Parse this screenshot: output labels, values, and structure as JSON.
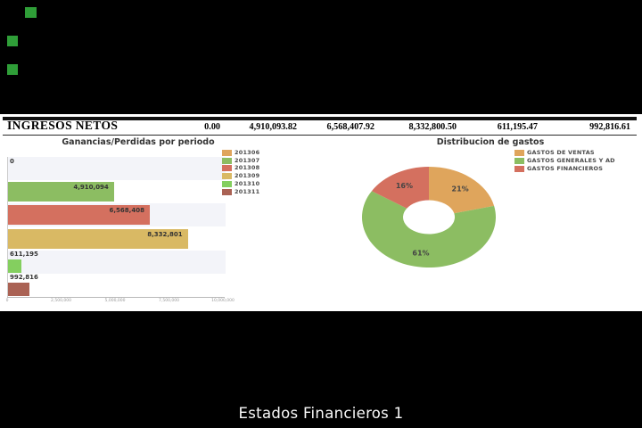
{
  "window": {
    "background": "#000000",
    "panel_background": "#ffffff"
  },
  "decor": {
    "green_square_color": "#2f9e38",
    "square_count": 3
  },
  "income_row": {
    "label": "INGRESOS NETOS",
    "values": [
      "0.00",
      "4,910,093.82",
      "6,568,407.92",
      "8,332,800.50",
      "611,195.47",
      "992,816.61"
    ]
  },
  "caption": "Estados Financieros 1",
  "chart_data": [
    {
      "type": "bar",
      "orientation": "horizontal",
      "title": "Ganancias/Perdidas por periodo",
      "categories": [
        "201306",
        "201307",
        "201308",
        "201309",
        "201310",
        "201311"
      ],
      "values": [
        0,
        4910094,
        6568408,
        8332801,
        611195,
        992816
      ],
      "bar_labels": [
        "0",
        "4,910,094",
        "6,568,408",
        "8,332,801",
        "611,195",
        "992,816"
      ],
      "colors": [
        "#dfa55c",
        "#8cbd62",
        "#d4705f",
        "#d9b964",
        "#84cf5f",
        "#aa6254"
      ],
      "xlim": [
        0,
        10000000
      ],
      "x_ticks": [
        {
          "value": 0,
          "label": "0"
        },
        {
          "value": 2500000,
          "label": "2,500,000"
        },
        {
          "value": 5000000,
          "label": "5,000,000"
        },
        {
          "value": 7500000,
          "label": "7,500,000"
        },
        {
          "value": 10000000,
          "label": "10,000,000"
        }
      ],
      "row_stripe_colors": [
        "#f3f4f9",
        "#ffffff"
      ],
      "legend_position": "right",
      "grid": false
    },
    {
      "type": "pie",
      "donut": true,
      "title": "Distribucion de gastos",
      "labels": [
        "GASTOS DE VENTAS",
        "GASTOS GENERALES Y AD",
        "GASTOS FINANCIEROS"
      ],
      "values": [
        21,
        61,
        16
      ],
      "slice_labels": [
        "21%",
        "61%",
        "16%"
      ],
      "colors": [
        "#dfa55c",
        "#8cbd62",
        "#d4705f"
      ],
      "start_angle_deg": 0,
      "direction": "clockwise",
      "legend_position": "top-right"
    }
  ]
}
